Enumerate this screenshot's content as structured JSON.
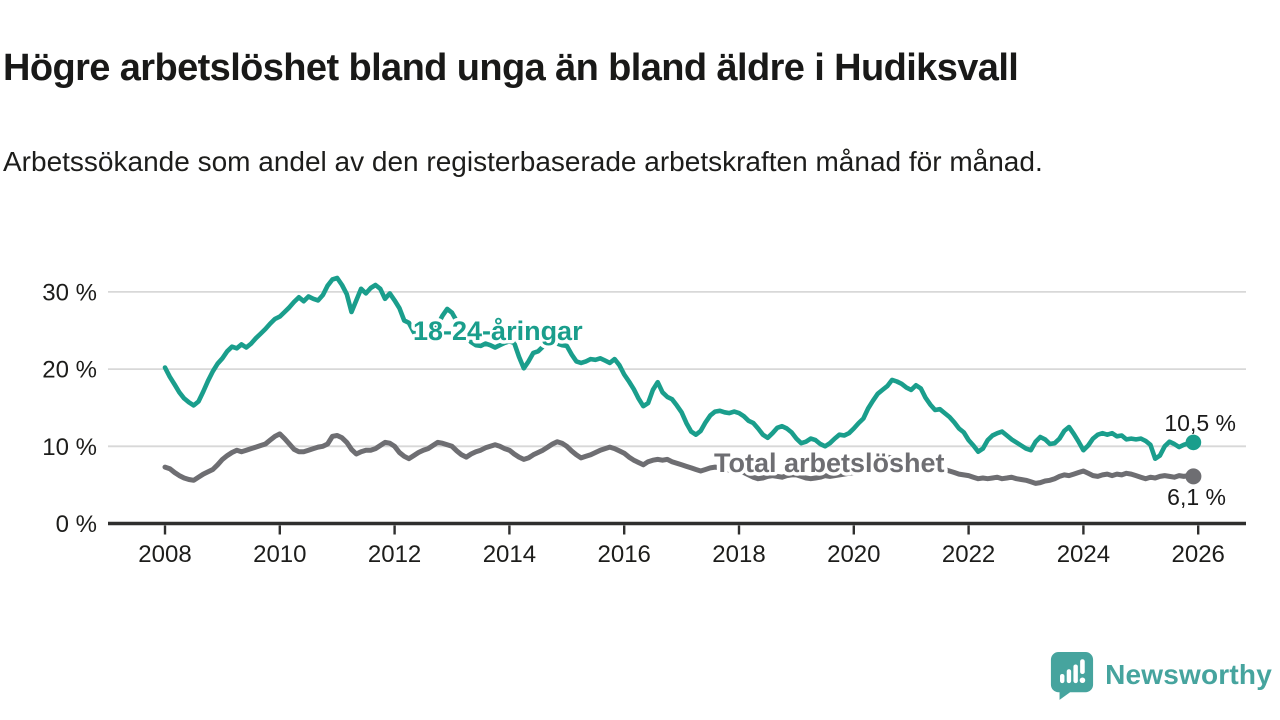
{
  "header": {
    "title": "Högre arbetslöshet bland unga än bland äldre i Hudiksvall",
    "subtitle": "Arbetssökande som andel av den registerbaserade arbetskraften månad för månad."
  },
  "colors": {
    "young_line": "#1a9e8c",
    "total_line": "#6e6e72",
    "axis": "#2f2f2e",
    "grid": "#d8d8d8",
    "text": "#1d1d1b",
    "brand": "#46a49e"
  },
  "chart_data": {
    "type": "line",
    "x_start": 2008,
    "points_per_year": 12,
    "xlim": [
      2008,
      2026.8
    ],
    "ylim": [
      0,
      33
    ],
    "grid": true,
    "legend_position": "inline-labels",
    "x_ticks": [
      {
        "year": 2008,
        "label": "2008"
      },
      {
        "year": 2010,
        "label": "2010"
      },
      {
        "year": 2012,
        "label": "2012"
      },
      {
        "year": 2014,
        "label": "2014"
      },
      {
        "year": 2016,
        "label": "2016"
      },
      {
        "year": 2018,
        "label": "2018"
      },
      {
        "year": 2020,
        "label": "2020"
      },
      {
        "year": 2022,
        "label": "2022"
      },
      {
        "year": 2024,
        "label": "2024"
      },
      {
        "year": 2026,
        "label": "2026"
      }
    ],
    "y_ticks": [
      {
        "value": 0,
        "label": "0 %"
      },
      {
        "value": 10,
        "label": "10 %"
      },
      {
        "value": 20,
        "label": "20 %"
      },
      {
        "value": 30,
        "label": "30 %"
      }
    ],
    "series": [
      {
        "label": "18-24-åringar",
        "color": "#1a9e8c",
        "end_value": 10.5,
        "end_value_label": "10,5 %",
        "values": [
          20.2,
          19.0,
          18.0,
          17.0,
          16.2,
          15.7,
          15.3,
          15.8,
          17.1,
          18.5,
          19.7,
          20.7,
          21.4,
          22.3,
          22.9,
          22.7,
          23.2,
          22.8,
          23.3,
          24.0,
          24.6,
          25.2,
          25.9,
          26.5,
          26.8,
          27.4,
          28.0,
          28.7,
          29.3,
          28.8,
          29.4,
          29.1,
          28.9,
          29.6,
          30.8,
          31.6,
          31.8,
          30.9,
          29.7,
          27.4,
          28.9,
          30.4,
          29.8,
          30.5,
          30.9,
          30.4,
          29.1,
          29.8,
          28.9,
          27.9,
          26.3,
          26.0,
          24.8,
          23.9,
          23.7,
          24.0,
          24.7,
          25.7,
          26.9,
          27.8,
          27.3,
          26.2,
          25.1,
          24.2,
          23.5,
          23.1,
          23.0,
          23.3,
          23.1,
          22.8,
          23.1,
          23.4,
          23.6,
          23.4,
          21.6,
          20.1,
          21.0,
          22.1,
          22.3,
          22.9,
          23.4,
          23.6,
          23.3,
          23.1,
          23.0,
          21.9,
          21.0,
          20.8,
          21.0,
          21.3,
          21.2,
          21.4,
          21.1,
          20.8,
          21.3,
          20.5,
          19.3,
          18.4,
          17.4,
          16.2,
          15.2,
          15.6,
          17.3,
          18.3,
          17.0,
          16.4,
          16.1,
          15.3,
          14.4,
          13.0,
          11.9,
          11.5,
          12.0,
          13.1,
          14.0,
          14.5,
          14.6,
          14.4,
          14.3,
          14.5,
          14.3,
          13.9,
          13.3,
          13.0,
          12.3,
          11.5,
          11.1,
          11.7,
          12.4,
          12.6,
          12.3,
          11.8,
          11.0,
          10.4,
          10.6,
          11.0,
          10.8,
          10.3,
          10.0,
          10.4,
          11.0,
          11.5,
          11.4,
          11.7,
          12.3,
          13.0,
          13.6,
          14.9,
          15.9,
          16.8,
          17.3,
          17.8,
          18.6,
          18.4,
          18.1,
          17.6,
          17.3,
          17.9,
          17.5,
          16.3,
          15.4,
          14.7,
          14.8,
          14.3,
          13.8,
          13.1,
          12.3,
          11.8,
          10.8,
          10.1,
          9.3,
          9.7,
          10.8,
          11.4,
          11.7,
          11.9,
          11.4,
          10.9,
          10.5,
          10.1,
          9.7,
          9.5,
          10.6,
          11.2,
          10.9,
          10.3,
          10.4,
          11.0,
          12.0,
          12.5,
          11.6,
          10.6,
          9.5,
          10.1,
          11.0,
          11.5,
          11.7,
          11.5,
          11.7,
          11.3,
          11.4,
          10.9,
          11.0,
          10.9,
          11.0,
          10.7,
          10.2,
          8.4,
          8.8,
          10.0,
          10.6,
          10.3,
          9.9,
          10.2,
          10.4,
          10.5
        ]
      },
      {
        "label": "Total arbetslöshet",
        "color": "#6e6e72",
        "end_value": 6.1,
        "end_value_label": "6,1 %",
        "values": [
          7.3,
          7.1,
          6.6,
          6.2,
          5.9,
          5.7,
          5.6,
          6.0,
          6.4,
          6.7,
          7.0,
          7.6,
          8.3,
          8.8,
          9.2,
          9.5,
          9.3,
          9.5,
          9.7,
          9.9,
          10.1,
          10.3,
          10.8,
          11.3,
          11.6,
          11.0,
          10.3,
          9.6,
          9.3,
          9.3,
          9.5,
          9.7,
          9.9,
          10.0,
          10.3,
          11.3,
          11.4,
          11.1,
          10.5,
          9.6,
          9.0,
          9.3,
          9.5,
          9.5,
          9.7,
          10.1,
          10.5,
          10.4,
          10.0,
          9.2,
          8.7,
          8.4,
          8.8,
          9.2,
          9.5,
          9.7,
          10.1,
          10.5,
          10.4,
          10.2,
          10.0,
          9.4,
          8.9,
          8.6,
          9.0,
          9.3,
          9.5,
          9.8,
          10.0,
          10.2,
          10.0,
          9.7,
          9.5,
          9.0,
          8.6,
          8.3,
          8.5,
          8.9,
          9.2,
          9.5,
          9.9,
          10.3,
          10.6,
          10.4,
          10.0,
          9.4,
          8.9,
          8.5,
          8.7,
          8.9,
          9.2,
          9.5,
          9.7,
          9.9,
          9.7,
          9.4,
          9.1,
          8.6,
          8.2,
          7.9,
          7.6,
          8.0,
          8.2,
          8.3,
          8.2,
          8.3,
          8.0,
          7.8,
          7.6,
          7.4,
          7.2,
          7.0,
          6.8,
          7.0,
          7.2,
          7.3,
          7.2,
          7.0,
          6.9,
          7.0,
          6.9,
          6.6,
          6.3,
          6.0,
          5.8,
          5.9,
          6.1,
          6.2,
          6.1,
          6.0,
          6.2,
          6.3,
          6.3,
          6.1,
          5.9,
          5.8,
          5.9,
          6.0,
          6.2,
          6.1,
          6.2,
          6.3,
          6.4,
          6.5,
          6.6,
          6.8,
          7.2,
          7.9,
          8.3,
          8.6,
          8.7,
          8.6,
          8.5,
          8.4,
          8.3,
          8.4,
          8.5,
          8.3,
          8.0,
          7.7,
          7.4,
          7.2,
          7.1,
          7.0,
          6.8,
          6.6,
          6.4,
          6.3,
          6.2,
          6.0,
          5.8,
          5.9,
          5.8,
          5.9,
          6.0,
          5.8,
          5.9,
          6.0,
          5.8,
          5.7,
          5.6,
          5.4,
          5.2,
          5.3,
          5.5,
          5.6,
          5.8,
          6.1,
          6.3,
          6.2,
          6.4,
          6.6,
          6.8,
          6.5,
          6.2,
          6.1,
          6.3,
          6.4,
          6.2,
          6.4,
          6.3,
          6.5,
          6.4,
          6.2,
          6.0,
          5.8,
          6.0,
          5.9,
          6.1,
          6.2,
          6.1,
          6.0,
          6.2,
          6.1,
          6.2,
          6.1
        ]
      }
    ]
  },
  "footer": {
    "brand": "Newsworthy"
  }
}
